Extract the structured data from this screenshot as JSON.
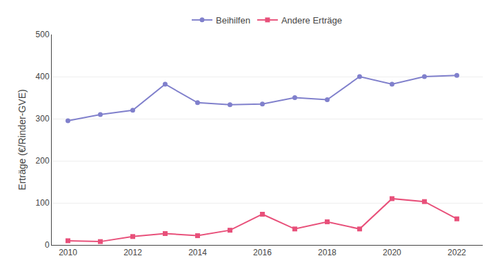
{
  "chart_data": {
    "type": "line",
    "x": [
      2010,
      2011,
      2012,
      2013,
      2014,
      2015,
      2016,
      2017,
      2018,
      2019,
      2020,
      2021,
      2022
    ],
    "series": [
      {
        "name": "Beihilfen",
        "color": "#8080cc",
        "marker": "circle",
        "line_style": "solid",
        "values": [
          295,
          310,
          320,
          382,
          338,
          333,
          335,
          350,
          345,
          400,
          382,
          400,
          403
        ]
      },
      {
        "name": "Andere Erträge",
        "color": "#e8507a",
        "marker": "square",
        "line_style": "solid",
        "values": [
          10,
          8,
          20,
          27,
          22,
          35,
          73,
          38,
          55,
          38,
          110,
          103,
          62
        ]
      }
    ],
    "y_label": "Erträge (€/Rinder-GVE)",
    "xlim": [
      2009.5,
      2022.8
    ],
    "xticks": [
      2010,
      2012,
      2014,
      2016,
      2018,
      2020,
      2022
    ],
    "ylim": [
      0,
      500
    ],
    "yticks": [
      0,
      100,
      200,
      300,
      400,
      500
    ],
    "grid": "y",
    "legend": "top"
  }
}
